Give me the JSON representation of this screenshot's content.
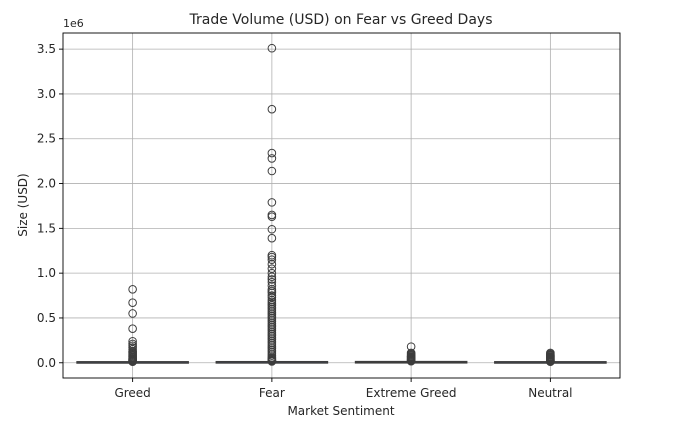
{
  "chart_data": {
    "type": "box",
    "title": "Trade Volume (USD) on Fear vs Greed Days",
    "xlabel": "Market Sentiment",
    "ylabel": "Size (USD)",
    "y_offset_label": "1e6",
    "ylim": [
      -0.17,
      3.68
    ],
    "grid": true,
    "y_ticks": [
      {
        "value": 0.0,
        "label": "0.0"
      },
      {
        "value": 0.5,
        "label": "0.5"
      },
      {
        "value": 1.0,
        "label": "1.0"
      },
      {
        "value": 1.5,
        "label": "1.5"
      },
      {
        "value": 2.0,
        "label": "2.0"
      },
      {
        "value": 2.5,
        "label": "2.5"
      },
      {
        "value": 3.0,
        "label": "3.0"
      },
      {
        "value": 3.5,
        "label": "3.5"
      }
    ],
    "categories": [
      "Greed",
      "Fear",
      "Extreme Greed",
      "Neutral"
    ],
    "boxes": [
      {
        "category": "Greed",
        "q1": 0.0,
        "median": 0.001,
        "q3": 0.004,
        "whisker_low": 0.0,
        "whisker_high": 0.009,
        "outliers": [
          0.82,
          0.67,
          0.55,
          0.38,
          0.24,
          0.21,
          0.19,
          0.17,
          0.15,
          0.13,
          0.12,
          0.11,
          0.1,
          0.09,
          0.08,
          0.07,
          0.06,
          0.05,
          0.045,
          0.04,
          0.035,
          0.03,
          0.025,
          0.02,
          0.015,
          0.012
        ]
      },
      {
        "category": "Fear",
        "q1": 0.0,
        "median": 0.001,
        "q3": 0.005,
        "whisker_low": 0.0,
        "whisker_high": 0.012,
        "outliers": [
          3.51,
          2.83,
          2.34,
          2.28,
          2.14,
          1.79,
          1.65,
          1.63,
          1.49,
          1.39,
          1.2,
          1.18,
          1.15,
          1.1,
          1.05,
          1.0,
          0.96,
          0.93,
          0.9,
          0.86,
          0.82,
          0.8,
          0.78,
          0.75,
          0.73,
          0.7,
          0.68,
          0.66,
          0.64,
          0.62,
          0.6,
          0.58,
          0.56,
          0.54,
          0.52,
          0.5,
          0.48,
          0.46,
          0.44,
          0.42,
          0.4,
          0.38,
          0.36,
          0.34,
          0.32,
          0.3,
          0.28,
          0.26,
          0.24,
          0.22,
          0.2,
          0.18,
          0.16,
          0.14,
          0.12,
          0.1,
          0.08,
          0.06,
          0.05,
          0.04,
          0.03,
          0.025,
          0.02,
          0.015
        ]
      },
      {
        "category": "Extreme Greed",
        "q1": 0.0,
        "median": 0.002,
        "q3": 0.006,
        "whisker_low": 0.0,
        "whisker_high": 0.014,
        "outliers": [
          0.18,
          0.11,
          0.1,
          0.09,
          0.08,
          0.07,
          0.065,
          0.06,
          0.055,
          0.05,
          0.045,
          0.04,
          0.035,
          0.03,
          0.025,
          0.02,
          0.017
        ]
      },
      {
        "category": "Neutral",
        "q1": 0.0,
        "median": 0.001,
        "q3": 0.004,
        "whisker_low": 0.0,
        "whisker_high": 0.01,
        "outliers": [
          0.11,
          0.1,
          0.09,
          0.085,
          0.08,
          0.07,
          0.065,
          0.06,
          0.055,
          0.05,
          0.045,
          0.04,
          0.035,
          0.03,
          0.025,
          0.02,
          0.015,
          0.012
        ]
      }
    ],
    "colors": {
      "box_fill": "#4c72b0",
      "box_edge": "#3d3d3d",
      "outlier_edge": "#3d3d3d",
      "grid": "#b0b0b0",
      "axis": "#000000",
      "text": "#262626"
    }
  }
}
